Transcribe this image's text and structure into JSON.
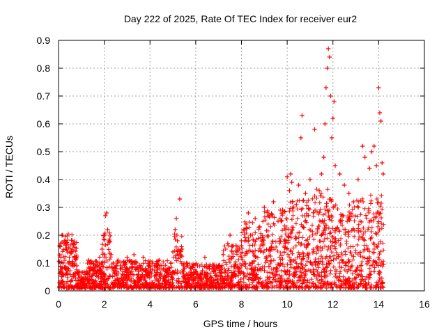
{
  "chart_data": {
    "type": "scatter",
    "title": "Day 222 of 2025, Rate Of TEC Index for receiver eur2",
    "xlabel": "GPS time / hours",
    "ylabel": "ROTI / TECUs",
    "xlim": [
      0,
      16
    ],
    "ylim": [
      0,
      0.9
    ],
    "xticks": [
      "0",
      "2",
      "4",
      "6",
      "8",
      "10",
      "12",
      "14",
      "16"
    ],
    "yticks": [
      "0",
      "0.1",
      "0.2",
      "0.3",
      "0.4",
      "0.5",
      "0.6",
      "0.7",
      "0.8",
      "0.9"
    ],
    "grid": true,
    "marker": "+",
    "color": "#ff0000",
    "series": [
      {
        "name": "ROTI",
        "points": [
          [
            0.05,
            0.16
          ],
          [
            0.1,
            0.12
          ],
          [
            0.15,
            0.2
          ],
          [
            0.2,
            0.1
          ],
          [
            0.25,
            0.18
          ],
          [
            0.3,
            0.08
          ],
          [
            0.35,
            0.15
          ],
          [
            0.4,
            0.06
          ],
          [
            0.5,
            0.14
          ],
          [
            0.6,
            0.1
          ],
          [
            0.7,
            0.12
          ],
          [
            0.8,
            0.09
          ],
          [
            0.9,
            0.07
          ],
          [
            1.0,
            0.05
          ],
          [
            1.1,
            0.04
          ],
          [
            1.3,
            0.11
          ],
          [
            1.4,
            0.08
          ],
          [
            1.5,
            0.06
          ],
          [
            1.6,
            0.09
          ],
          [
            1.7,
            0.07
          ],
          [
            1.8,
            0.12
          ],
          [
            1.9,
            0.15
          ],
          [
            2.0,
            0.2
          ],
          [
            2.05,
            0.27
          ],
          [
            2.1,
            0.28
          ],
          [
            2.15,
            0.22
          ],
          [
            2.2,
            0.18
          ],
          [
            2.3,
            0.13
          ],
          [
            2.4,
            0.1
          ],
          [
            2.5,
            0.08
          ],
          [
            2.6,
            0.11
          ],
          [
            2.7,
            0.09
          ],
          [
            2.8,
            0.06
          ],
          [
            2.9,
            0.1
          ],
          [
            3.0,
            0.12
          ],
          [
            3.1,
            0.08
          ],
          [
            3.2,
            0.07
          ],
          [
            3.3,
            0.13
          ],
          [
            3.4,
            0.1
          ],
          [
            3.5,
            0.07
          ],
          [
            3.6,
            0.09
          ],
          [
            3.7,
            0.12
          ],
          [
            3.8,
            0.08
          ],
          [
            3.9,
            0.06
          ],
          [
            4.0,
            0.07
          ],
          [
            4.2,
            0.09
          ],
          [
            4.4,
            0.11
          ],
          [
            4.6,
            0.08
          ],
          [
            4.8,
            0.06
          ],
          [
            5.0,
            0.14
          ],
          [
            5.1,
            0.22
          ],
          [
            5.15,
            0.26
          ],
          [
            5.2,
            0.18
          ],
          [
            5.3,
            0.33
          ],
          [
            5.4,
            0.15
          ],
          [
            5.6,
            0.1
          ],
          [
            5.8,
            0.08
          ],
          [
            6.0,
            0.07
          ],
          [
            6.2,
            0.06
          ],
          [
            6.4,
            0.12
          ],
          [
            6.6,
            0.08
          ],
          [
            6.8,
            0.07
          ],
          [
            7.0,
            0.09
          ],
          [
            7.2,
            0.13
          ],
          [
            7.4,
            0.17
          ],
          [
            7.5,
            0.2
          ],
          [
            7.6,
            0.16
          ],
          [
            7.8,
            0.14
          ],
          [
            8.0,
            0.18
          ],
          [
            8.1,
            0.22
          ],
          [
            8.2,
            0.24
          ],
          [
            8.3,
            0.28
          ],
          [
            8.4,
            0.2
          ],
          [
            8.6,
            0.26
          ],
          [
            8.8,
            0.23
          ],
          [
            9.0,
            0.3
          ],
          [
            9.2,
            0.27
          ],
          [
            9.4,
            0.32
          ],
          [
            9.6,
            0.25
          ],
          [
            9.8,
            0.29
          ],
          [
            10.0,
            0.41
          ],
          [
            10.1,
            0.36
          ],
          [
            10.15,
            0.42
          ],
          [
            10.2,
            0.39
          ],
          [
            10.4,
            0.31
          ],
          [
            10.5,
            0.38
          ],
          [
            10.6,
            0.55
          ],
          [
            10.65,
            0.63
          ],
          [
            10.8,
            0.35
          ],
          [
            11.0,
            0.4
          ],
          [
            11.2,
            0.58
          ],
          [
            11.4,
            0.36
          ],
          [
            11.5,
            0.42
          ],
          [
            11.6,
            0.48
          ],
          [
            11.65,
            0.6
          ],
          [
            11.7,
            0.73
          ],
          [
            11.75,
            0.8
          ],
          [
            11.8,
            0.87
          ],
          [
            11.85,
            0.84
          ],
          [
            11.9,
            0.7
          ],
          [
            11.95,
            0.55
          ],
          [
            12.0,
            0.62
          ],
          [
            12.05,
            0.68
          ],
          [
            12.1,
            0.45
          ],
          [
            12.3,
            0.42
          ],
          [
            12.5,
            0.38
          ],
          [
            12.7,
            0.35
          ],
          [
            12.9,
            0.32
          ],
          [
            13.1,
            0.4
          ],
          [
            13.3,
            0.52
          ],
          [
            13.4,
            0.48
          ],
          [
            13.6,
            0.44
          ],
          [
            13.7,
            0.5
          ],
          [
            13.8,
            0.52
          ],
          [
            13.9,
            0.45
          ],
          [
            14.0,
            0.73
          ],
          [
            14.05,
            0.64
          ],
          [
            14.1,
            0.61
          ],
          [
            14.15,
            0.46
          ],
          [
            14.2,
            0.42
          ]
        ]
      }
    ]
  }
}
